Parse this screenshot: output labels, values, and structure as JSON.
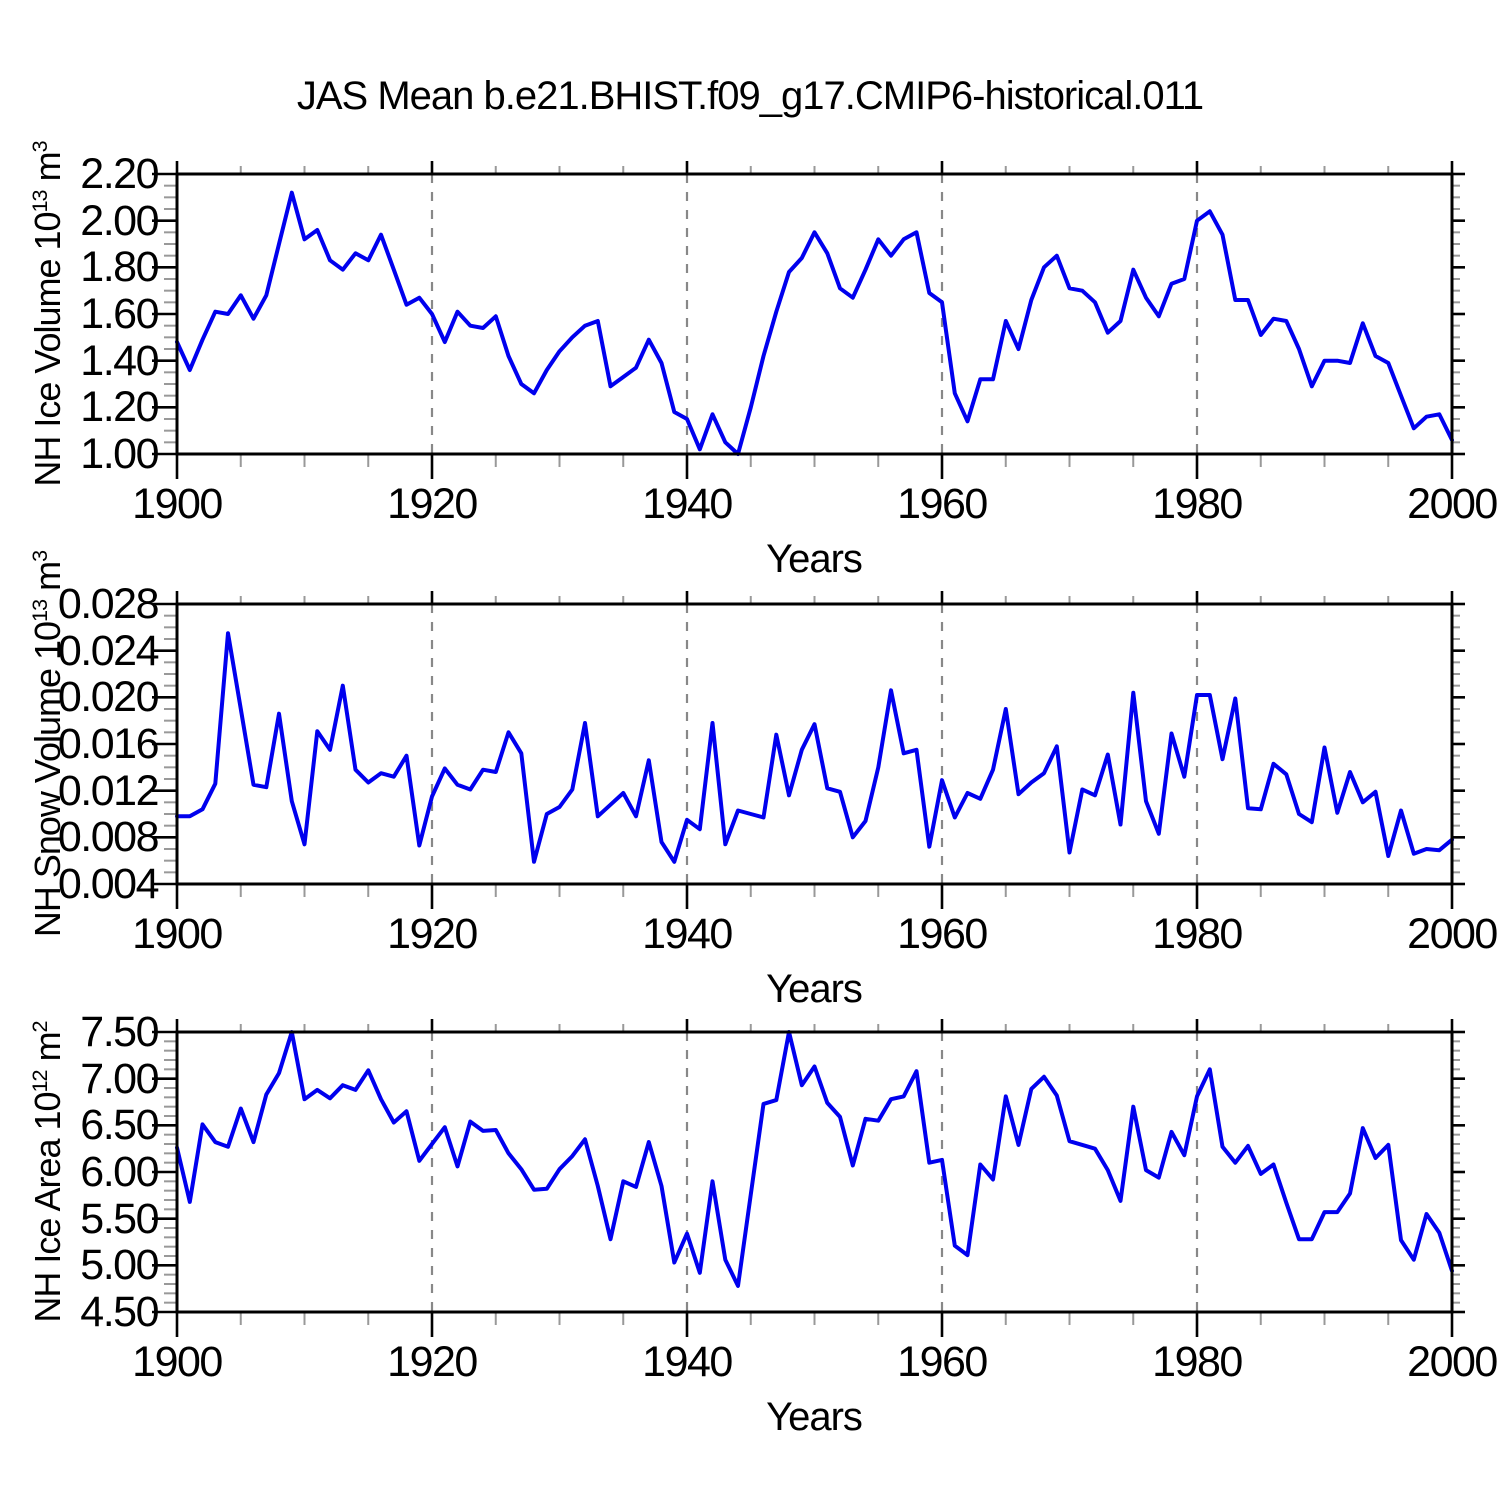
{
  "title": "JAS Mean b.e21.BHIST.f09_g17.CMIP6-historical.011",
  "colors": {
    "line": "#0000ee",
    "axis": "#000000",
    "major_tick": "#000000",
    "minor_tick": "#999999",
    "gridline": "#888888",
    "background": "#ffffff",
    "text": "#000000"
  },
  "x_axis": {
    "title": "Years",
    "range": [
      1900,
      2000
    ],
    "tick_labels": [
      "1900",
      "1920",
      "1940",
      "1960",
      "1980",
      "2000"
    ],
    "major_step": 20,
    "minor_step": 5,
    "gridlines_at": [
      1920,
      1940,
      1960,
      1980
    ]
  },
  "chart_data": [
    {
      "type": "line",
      "name": "NH Ice Volume",
      "ylabel": {
        "text": "NH Ice Volume 10",
        "exp": "13",
        "unit": " m",
        "unit_exp": "3"
      },
      "ylim": [
        1.0,
        2.2
      ],
      "ytick_labels": [
        "2.20",
        "2.00",
        "1.80",
        "1.60",
        "1.40",
        "1.20",
        "1.00"
      ],
      "ytick_step": 0.2,
      "ytick_minor_step": 0.05,
      "x": {
        "start": 1900,
        "end": 2000,
        "step": 1
      },
      "values": [
        1.48,
        1.36,
        1.49,
        1.61,
        1.6,
        1.68,
        1.58,
        1.68,
        1.9,
        2.12,
        1.92,
        1.96,
        1.83,
        1.79,
        1.86,
        1.83,
        1.94,
        1.79,
        1.64,
        1.67,
        1.6,
        1.48,
        1.61,
        1.55,
        1.54,
        1.59,
        1.42,
        1.3,
        1.26,
        1.36,
        1.44,
        1.5,
        1.55,
        1.57,
        1.29,
        1.33,
        1.37,
        1.49,
        1.39,
        1.18,
        1.15,
        1.02,
        1.17,
        1.05,
        1.0,
        1.2,
        1.42,
        1.61,
        1.78,
        1.84,
        1.95,
        1.86,
        1.71,
        1.67,
        1.79,
        1.92,
        1.85,
        1.92,
        1.95,
        1.69,
        1.65,
        1.26,
        1.14,
        1.32,
        1.32,
        1.57,
        1.45,
        1.66,
        1.8,
        1.85,
        1.71,
        1.7,
        1.65,
        1.52,
        1.57,
        1.79,
        1.67,
        1.59,
        1.73,
        1.75,
        2.0,
        2.04,
        1.94,
        1.66,
        1.66,
        1.51,
        1.58,
        1.57,
        1.45,
        1.29,
        1.4,
        1.4,
        1.39,
        1.56,
        1.42,
        1.39,
        1.25,
        1.11,
        1.16,
        1.17,
        1.06
      ]
    },
    {
      "type": "line",
      "name": "NH Snow Volume",
      "ylabel": {
        "text": "NH Snow Volume 10",
        "exp": "13",
        "unit": " m",
        "unit_exp": "3"
      },
      "ylim": [
        0.004,
        0.028
      ],
      "ytick_labels": [
        "0.028",
        "0.024",
        "0.020",
        "0.016",
        "0.012",
        "0.008",
        "0.004"
      ],
      "ytick_step": 0.004,
      "ytick_minor_step": 0.001,
      "x": {
        "start": 1900,
        "end": 2000,
        "step": 1
      },
      "values": [
        0.0098,
        0.0098,
        0.0104,
        0.0126,
        0.0255,
        0.019,
        0.0125,
        0.0123,
        0.0186,
        0.0111,
        0.0074,
        0.0171,
        0.0155,
        0.021,
        0.0138,
        0.0127,
        0.0135,
        0.0132,
        0.015,
        0.0073,
        0.0115,
        0.0139,
        0.0125,
        0.0121,
        0.0138,
        0.0136,
        0.017,
        0.0152,
        0.0059,
        0.01,
        0.0106,
        0.0121,
        0.0178,
        0.0098,
        0.0108,
        0.0118,
        0.0098,
        0.0146,
        0.0076,
        0.0059,
        0.0095,
        0.0087,
        0.0178,
        0.0074,
        0.0103,
        0.01,
        0.0097,
        0.0168,
        0.0116,
        0.0155,
        0.0177,
        0.0122,
        0.0119,
        0.008,
        0.0094,
        0.014,
        0.0206,
        0.0152,
        0.0155,
        0.0072,
        0.0129,
        0.0097,
        0.0118,
        0.0113,
        0.0138,
        0.019,
        0.0117,
        0.0127,
        0.0135,
        0.0158,
        0.0067,
        0.0121,
        0.0116,
        0.0151,
        0.0091,
        0.0204,
        0.0111,
        0.0083,
        0.0169,
        0.0132,
        0.0202,
        0.0202,
        0.0147,
        0.0199,
        0.0105,
        0.0104,
        0.0143,
        0.0134,
        0.01,
        0.0093,
        0.0157,
        0.0101,
        0.0136,
        0.011,
        0.0119,
        0.0064,
        0.0103,
        0.0066,
        0.007,
        0.0069,
        0.0078
      ]
    },
    {
      "type": "line",
      "name": "NH Ice Area",
      "ylabel": {
        "text": "NH Ice Area 10",
        "exp": "12",
        "unit": " m",
        "unit_exp": "2"
      },
      "ylim": [
        4.5,
        7.5
      ],
      "ytick_labels": [
        "7.50",
        "7.00",
        "6.50",
        "6.00",
        "5.50",
        "5.00",
        "4.50"
      ],
      "ytick_step": 0.5,
      "ytick_minor_step": 0.1,
      "x": {
        "start": 1900,
        "end": 2000,
        "step": 1
      },
      "values": [
        6.26,
        5.68,
        6.51,
        6.32,
        6.27,
        6.68,
        6.32,
        6.83,
        7.06,
        7.5,
        6.78,
        6.88,
        6.79,
        6.93,
        6.88,
        7.09,
        6.78,
        6.53,
        6.65,
        6.12,
        6.3,
        6.48,
        6.06,
        6.54,
        6.44,
        6.45,
        6.2,
        6.03,
        5.81,
        5.82,
        6.03,
        6.17,
        6.35,
        5.85,
        5.28,
        5.9,
        5.84,
        6.32,
        5.85,
        5.03,
        5.34,
        4.92,
        5.9,
        5.06,
        4.78,
        5.76,
        6.73,
        6.77,
        7.5,
        6.93,
        7.13,
        6.74,
        6.59,
        6.07,
        6.57,
        6.55,
        6.78,
        6.81,
        7.08,
        6.1,
        6.13,
        5.21,
        5.11,
        6.08,
        5.92,
        6.81,
        6.29,
        6.89,
        7.02,
        6.82,
        6.33,
        6.29,
        6.25,
        6.02,
        5.69,
        6.7,
        6.02,
        5.94,
        6.43,
        6.18,
        6.81,
        7.1,
        6.27,
        6.1,
        6.28,
        5.98,
        6.08,
        5.67,
        5.28,
        5.28,
        5.57,
        5.57,
        5.77,
        6.47,
        6.15,
        6.29,
        5.27,
        5.06,
        5.55,
        5.35,
        4.94
      ]
    }
  ]
}
